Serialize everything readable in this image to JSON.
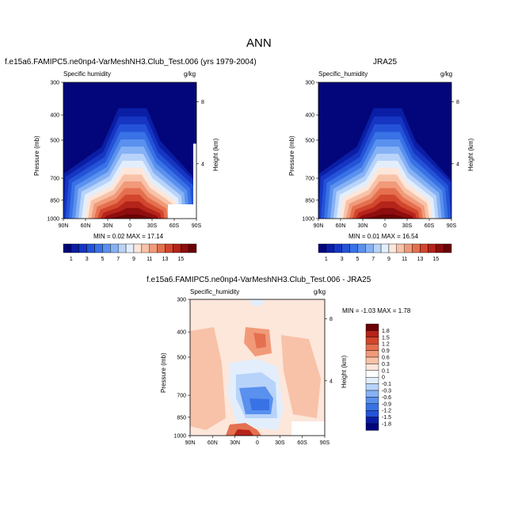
{
  "page_title": "ANN",
  "panels": [
    {
      "title": "f.e15a6.FAMIPC5.ne0np4-VarMeshNH3.Club_Test.006 (yrs 1979-2004)",
      "left_label": "Specific humidity",
      "right_label": "g/kg",
      "ylabel": "Pressure (mb)",
      "ylabel_right": "Height (km)",
      "minmax": "MIN =  0.02  MAX = 17.14"
    },
    {
      "title": "JRA25",
      "left_label": "Specific_humidity",
      "right_label": "g/kg",
      "ylabel": "Pressure (mb)",
      "ylabel_right": "Height (km)",
      "minmax": "MIN =  0.01  MAX = 16.54"
    },
    {
      "title": "f.e15a6.FAMIPC5.ne0np4-VarMeshNH3.Club_Test.006 - JRA25",
      "left_label": "Specific_humidity",
      "right_label": "g/kg",
      "ylabel": "Pressure (mb)",
      "ylabel_right": "Height (km)",
      "minmax": "MIN = -1.03  MAX =  1.78"
    }
  ],
  "chart_data": [
    {
      "type": "heatmap",
      "title": "f.e15a6.FAMIPC5.ne0np4-VarMeshNH3.Club_Test.006 (yrs 1979-2004)",
      "variable": "Specific humidity",
      "units": "g/kg",
      "xlabel": "",
      "ylabel": "Pressure (mb)",
      "ylabel_right": "Height (km)",
      "x_ticks": [
        "90N",
        "60N",
        "30N",
        "0",
        "30S",
        "60S",
        "90S"
      ],
      "y_ticks": [
        300,
        400,
        500,
        700,
        850,
        1000
      ],
      "y_right_ticks": [
        8,
        4
      ],
      "y_scale": "log",
      "ylim": [
        1000,
        300
      ],
      "min": 0.02,
      "max": 17.14,
      "colorbar_levels": [
        1,
        2,
        3,
        4,
        5,
        6,
        7,
        8,
        9,
        10,
        11,
        12,
        13,
        14,
        15,
        16
      ],
      "colorbar_labels": [
        "1",
        "3",
        "5",
        "7",
        "9",
        "11",
        "13",
        "15"
      ],
      "colors": [
        "#03067a",
        "#0a1ea5",
        "#1636c2",
        "#2453d8",
        "#3972e5",
        "#5a90ee",
        "#86b1f5",
        "#b8d3fa",
        "#e3eefc",
        "#fde6da",
        "#f7c2a8",
        "#f19a7a",
        "#e4704f",
        "#d2462d",
        "#b5241a",
        "#8e0d0e",
        "#6b0205"
      ]
    },
    {
      "type": "heatmap",
      "title": "JRA25",
      "variable": "Specific_humidity",
      "units": "g/kg",
      "xlabel": "",
      "ylabel": "Pressure (mb)",
      "ylabel_right": "Height (km)",
      "x_ticks": [
        "90N",
        "60N",
        "30N",
        "0",
        "30S",
        "60S",
        "90S"
      ],
      "y_ticks": [
        300,
        400,
        500,
        700,
        850,
        1000
      ],
      "y_right_ticks": [
        8,
        4
      ],
      "y_scale": "log",
      "ylim": [
        1000,
        300
      ],
      "min": 0.01,
      "max": 16.54,
      "colorbar_levels": [
        1,
        2,
        3,
        4,
        5,
        6,
        7,
        8,
        9,
        10,
        11,
        12,
        13,
        14,
        15,
        16
      ],
      "colorbar_labels": [
        "1",
        "3",
        "5",
        "7",
        "9",
        "11",
        "13",
        "15"
      ],
      "colors": [
        "#03067a",
        "#0a1ea5",
        "#1636c2",
        "#2453d8",
        "#3972e5",
        "#5a90ee",
        "#86b1f5",
        "#b8d3fa",
        "#e3eefc",
        "#fde6da",
        "#f7c2a8",
        "#f19a7a",
        "#e4704f",
        "#d2462d",
        "#b5241a",
        "#8e0d0e",
        "#6b0205"
      ]
    },
    {
      "type": "heatmap",
      "title": "f.e15a6.FAMIPC5.ne0np4-VarMeshNH3.Club_Test.006 - JRA25",
      "variable": "Specific_humidity",
      "units": "g/kg",
      "xlabel": "",
      "ylabel": "Pressure (mb)",
      "ylabel_right": "Height (km)",
      "x_ticks": [
        "90N",
        "60N",
        "30N",
        "0",
        "30S",
        "60S",
        "90S"
      ],
      "y_ticks": [
        300,
        400,
        500,
        700,
        850,
        1000
      ],
      "y_right_ticks": [
        8,
        4
      ],
      "y_scale": "log",
      "ylim": [
        1000,
        300
      ],
      "min": -1.03,
      "max": 1.78,
      "colorbar_labels": [
        "1.8",
        "1.5",
        "1.2",
        "0.9",
        "0.6",
        "0.3",
        "0.1",
        "0",
        "-0.1",
        "-0.3",
        "-0.6",
        "-0.9",
        "-1.2",
        "-1.5",
        "-1.8"
      ],
      "colors": [
        "#6b0205",
        "#b5241a",
        "#d2462d",
        "#e4704f",
        "#f19a7a",
        "#f7c2a8",
        "#fde6da",
        "#ffffff",
        "#e3eefc",
        "#b8d3fa",
        "#86b1f5",
        "#5a90ee",
        "#3972e5",
        "#2453d8",
        "#0a1ea5",
        "#03067a"
      ]
    }
  ]
}
